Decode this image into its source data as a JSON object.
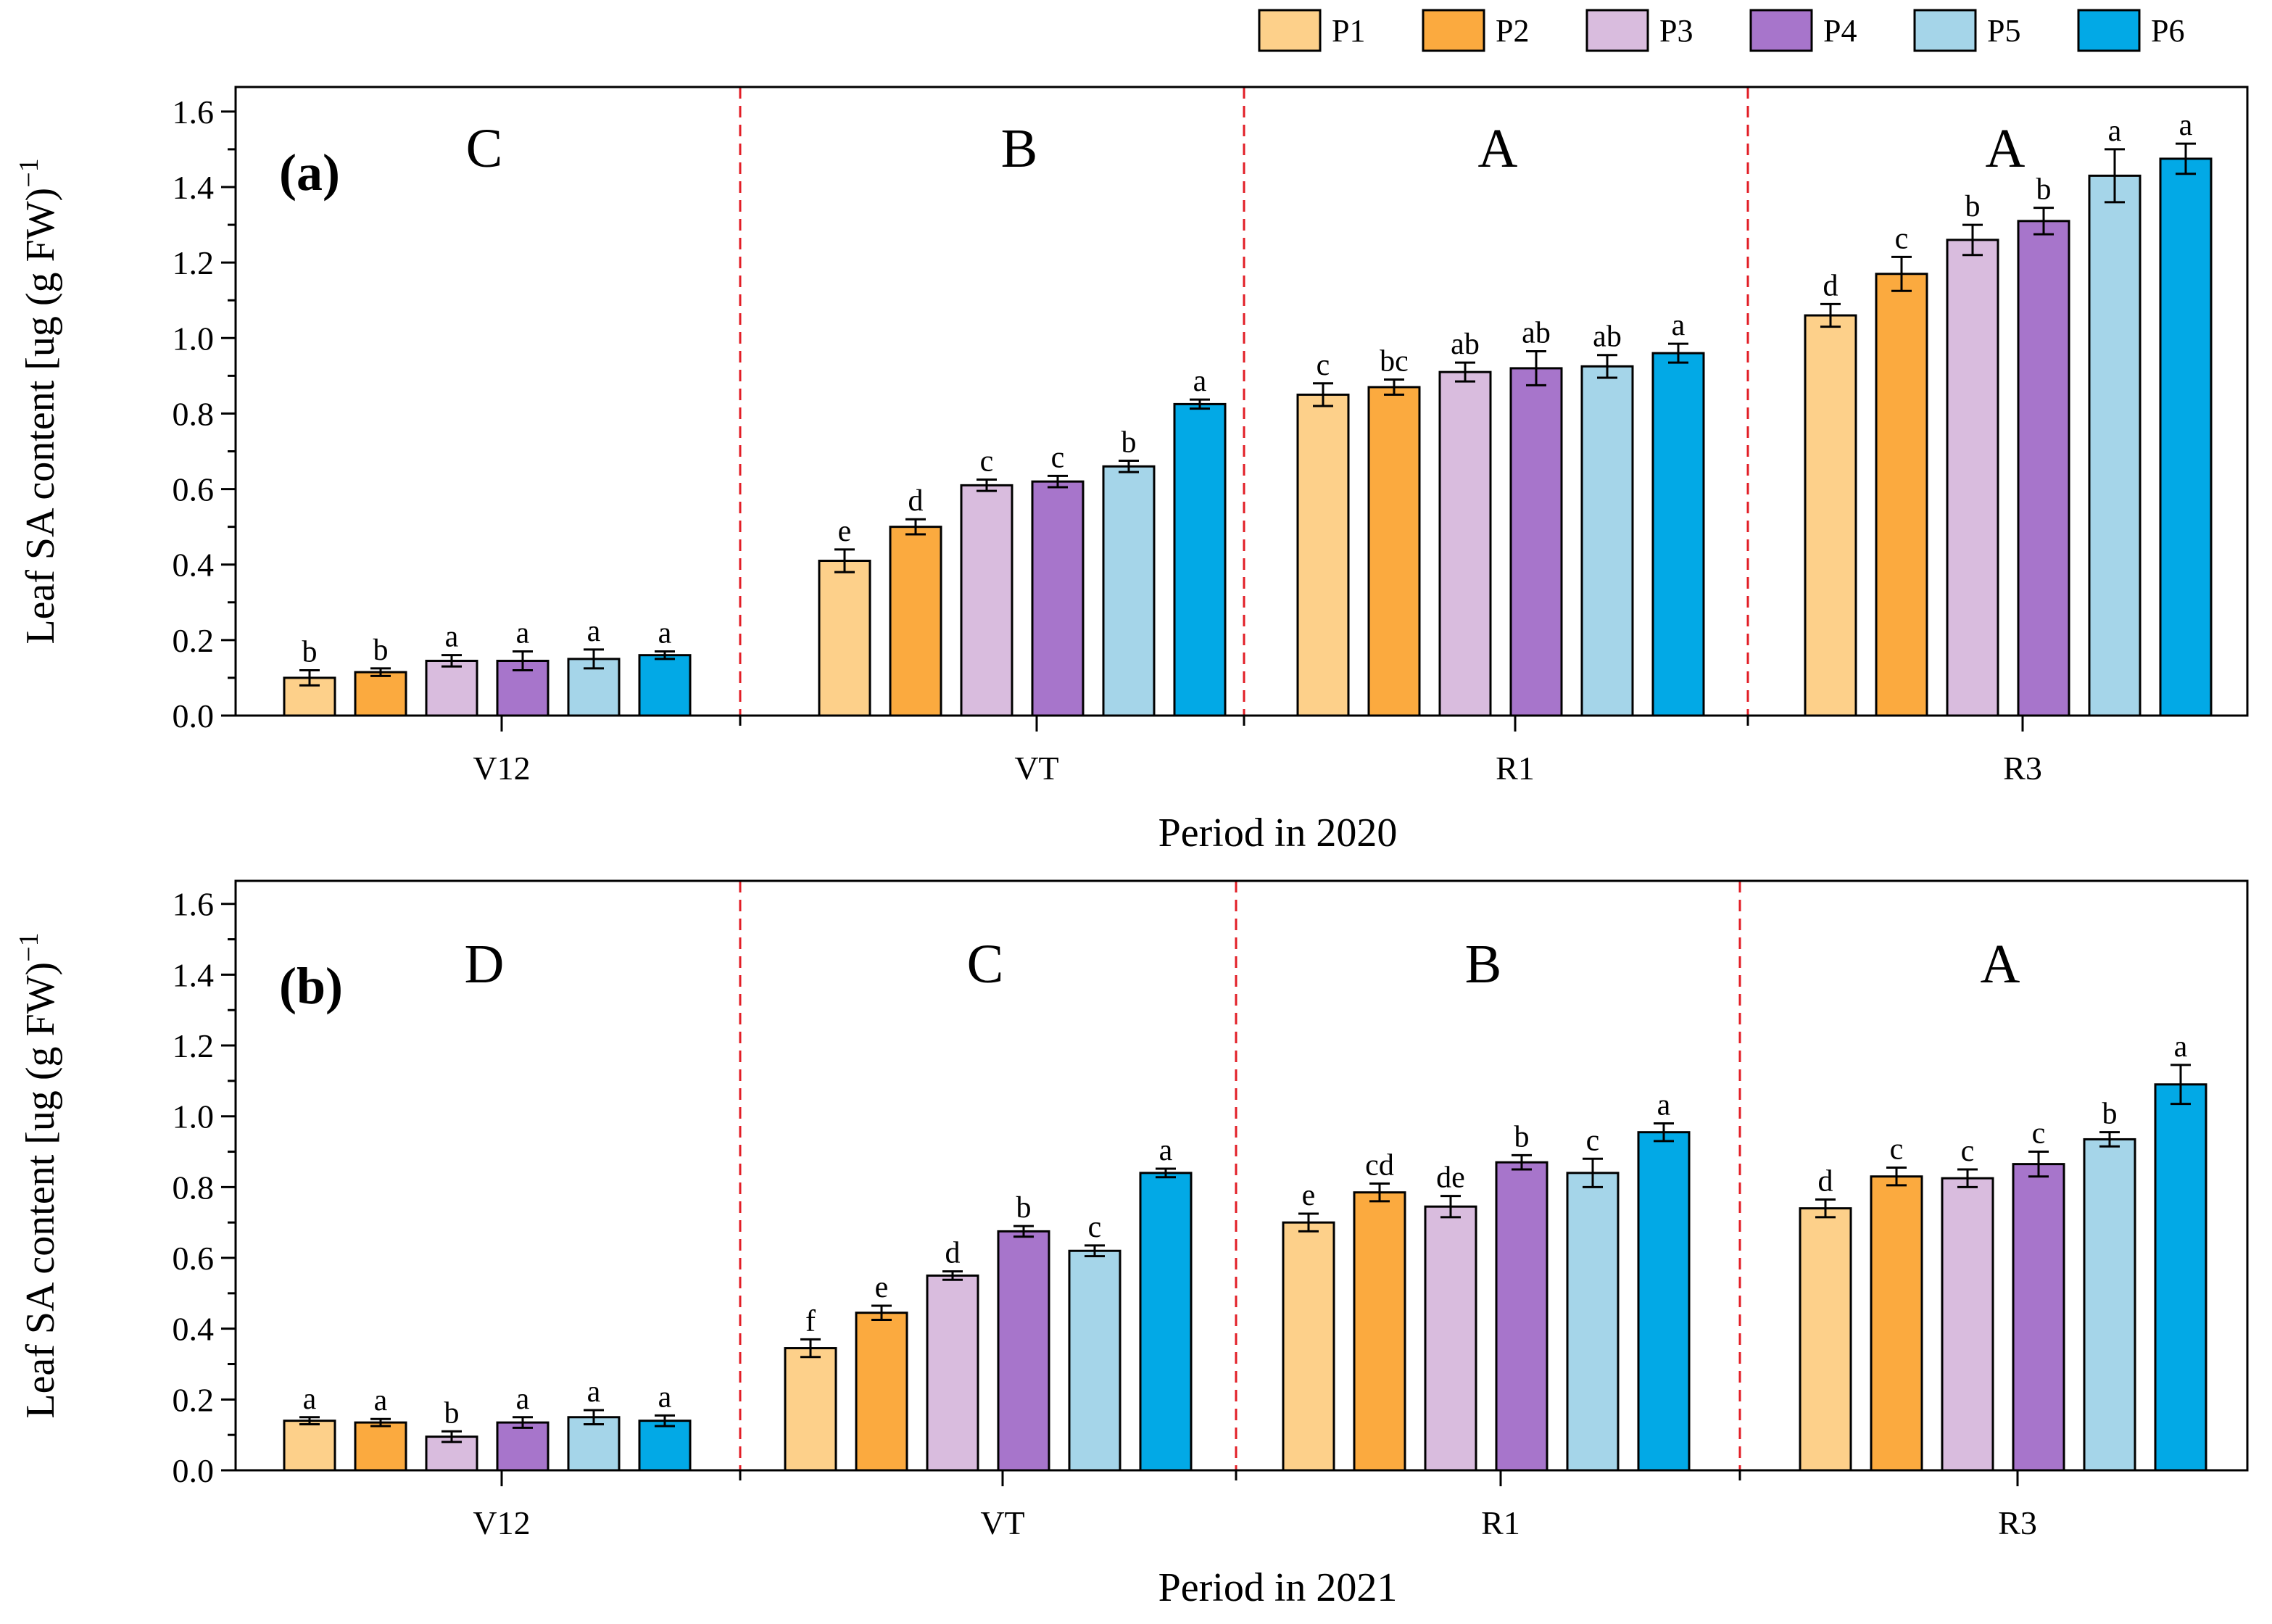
{
  "colors": {
    "P1": "#FDD08A",
    "P2": "#FBAA3F",
    "P3": "#D9BCDE",
    "P4": "#A775CB",
    "P5": "#A5D5E9",
    "P6": "#02A9E6",
    "divider": "#E21E26"
  },
  "legend": {
    "items": [
      {
        "key": "P1",
        "label": "P1"
      },
      {
        "key": "P2",
        "label": "P2"
      },
      {
        "key": "P3",
        "label": "P3"
      },
      {
        "key": "P4",
        "label": "P4"
      },
      {
        "key": "P5",
        "label": "P5"
      },
      {
        "key": "P6",
        "label": "P6"
      }
    ]
  },
  "chart_data": [
    {
      "type": "bar",
      "panel_label": "(a)",
      "xlabel": "Period in 2020",
      "ylabel": "Leaf SA content [ug (g FW)",
      "ylabel_superscript": "−1",
      "ylim": [
        0,
        1.6
      ],
      "yticks": [
        "0.0",
        "0.2",
        "0.4",
        "0.6",
        "0.8",
        "1.0",
        "1.2",
        "1.4",
        "1.6"
      ],
      "categories": [
        "V12",
        "VT",
        "R1",
        "R3"
      ],
      "group_letters": [
        "C",
        "B",
        "A",
        "A"
      ],
      "series": [
        {
          "name": "P1",
          "values": [
            0.1,
            0.41,
            0.85,
            1.06
          ],
          "errors": [
            0.02,
            0.03,
            0.03,
            0.03
          ],
          "letters": [
            "b",
            "e",
            "c",
            "d"
          ]
        },
        {
          "name": "P2",
          "values": [
            0.115,
            0.5,
            0.87,
            1.17
          ],
          "errors": [
            0.01,
            0.02,
            0.02,
            0.045
          ],
          "letters": [
            "b",
            "d",
            "bc",
            "c"
          ]
        },
        {
          "name": "P3",
          "values": [
            0.145,
            0.61,
            0.91,
            1.26
          ],
          "errors": [
            0.015,
            0.015,
            0.025,
            0.04
          ],
          "letters": [
            "a",
            "c",
            "ab",
            "b"
          ]
        },
        {
          "name": "P4",
          "values": [
            0.145,
            0.62,
            0.92,
            1.31
          ],
          "errors": [
            0.025,
            0.015,
            0.045,
            0.035
          ],
          "letters": [
            "a",
            "c",
            "ab",
            "b"
          ]
        },
        {
          "name": "P5",
          "values": [
            0.15,
            0.66,
            0.925,
            1.43
          ],
          "errors": [
            0.025,
            0.015,
            0.03,
            0.07
          ],
          "letters": [
            "a",
            "b",
            "ab",
            "a"
          ]
        },
        {
          "name": "P6",
          "values": [
            0.16,
            0.825,
            0.96,
            1.475
          ],
          "errors": [
            0.01,
            0.012,
            0.025,
            0.04
          ],
          "letters": [
            "a",
            "a",
            "a",
            "a"
          ]
        }
      ]
    },
    {
      "type": "bar",
      "panel_label": "(b)",
      "xlabel": "Period in 2021",
      "ylabel": "Leaf SA content [ug (g FW)",
      "ylabel_superscript": "−1",
      "ylim": [
        0,
        1.6
      ],
      "yticks": [
        "0.0",
        "0.2",
        "0.4",
        "0.6",
        "0.8",
        "1.0",
        "1.2",
        "1.4",
        "1.6"
      ],
      "categories": [
        "V12",
        "VT",
        "R1",
        "R3"
      ],
      "group_letters": [
        "D",
        "C",
        "B",
        "A"
      ],
      "series": [
        {
          "name": "P1",
          "values": [
            0.14,
            0.345,
            0.7,
            0.74
          ],
          "errors": [
            0.01,
            0.025,
            0.025,
            0.025
          ],
          "letters": [
            "a",
            "f",
            "e",
            "d"
          ]
        },
        {
          "name": "P2",
          "values": [
            0.135,
            0.445,
            0.785,
            0.83
          ],
          "errors": [
            0.01,
            0.02,
            0.025,
            0.025
          ],
          "letters": [
            "a",
            "e",
            "cd",
            "c"
          ]
        },
        {
          "name": "P3",
          "values": [
            0.095,
            0.55,
            0.745,
            0.825
          ],
          "errors": [
            0.015,
            0.012,
            0.03,
            0.025
          ],
          "letters": [
            "b",
            "d",
            "de",
            "c"
          ]
        },
        {
          "name": "P4",
          "values": [
            0.135,
            0.675,
            0.87,
            0.865
          ],
          "errors": [
            0.015,
            0.015,
            0.02,
            0.035
          ],
          "letters": [
            "a",
            "b",
            "b",
            "c"
          ]
        },
        {
          "name": "P5",
          "values": [
            0.15,
            0.62,
            0.84,
            0.935
          ],
          "errors": [
            0.02,
            0.015,
            0.04,
            0.02
          ],
          "letters": [
            "a",
            "c",
            "c",
            "b"
          ]
        },
        {
          "name": "P6",
          "values": [
            0.14,
            0.84,
            0.955,
            1.09
          ],
          "errors": [
            0.015,
            0.012,
            0.025,
            0.055
          ],
          "letters": [
            "a",
            "a",
            "a",
            "a"
          ]
        }
      ]
    }
  ]
}
